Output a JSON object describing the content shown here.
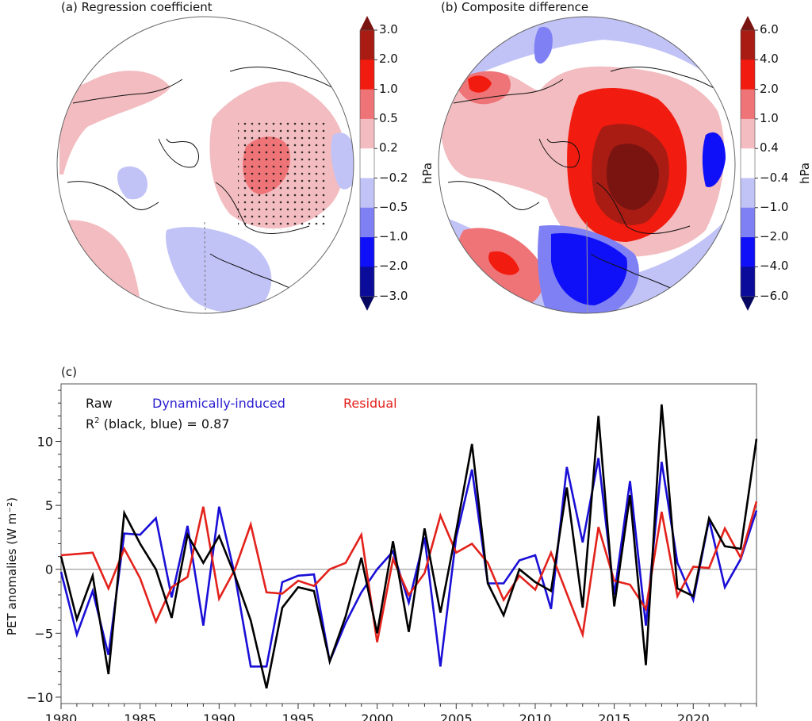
{
  "panels": {
    "a": {
      "title": "(a) Regression coefficient",
      "colorbar": {
        "unit": "hPa",
        "levels": [
          "3.0",
          "2.0",
          "1.0",
          "0.5",
          "0.2",
          "−0.2",
          "−0.5",
          "−1.0",
          "−2.0",
          "−3.0"
        ],
        "colors": [
          "#a81c14",
          "#f21b0f",
          "#ee7478",
          "#f2bcc0",
          "#ffffff",
          "#c1c3f7",
          "#7f80f4",
          "#1010f8",
          "#0c0c9a"
        ],
        "extend_top_color": "#7a1410",
        "extend_bottom_color": "#070760"
      }
    },
    "b": {
      "title": "(b) Composite difference",
      "colorbar": {
        "unit": "hPa",
        "levels": [
          "6.0",
          "4.0",
          "2.0",
          "1.0",
          "0.4",
          "−0.4",
          "−1.0",
          "−2.0",
          "−4.0",
          "−6.0"
        ],
        "colors": [
          "#a81c14",
          "#f21b0f",
          "#ee7478",
          "#f2bcc0",
          "#ffffff",
          "#c1c3f7",
          "#7f80f4",
          "#1010f8",
          "#0c0c9a"
        ],
        "extend_top_color": "#7a1410",
        "extend_bottom_color": "#070760"
      }
    },
    "c": {
      "title": "(c)",
      "legend": {
        "raw": "Raw",
        "dyn": "Dynamically-induced",
        "res": "Residual",
        "r2_prefix": "R",
        "r2_sup": "2",
        "r2_text": " (black, blue) = 0.87"
      }
    }
  },
  "chart_data": {
    "type": "line",
    "title": "(c)",
    "xlabel": "",
    "ylabel": "PET anomalies (W m⁻²)",
    "xlim": [
      1980,
      2024
    ],
    "ylim": [
      -10.5,
      14.5
    ],
    "xticks": [
      1980,
      1985,
      1990,
      1995,
      2000,
      2005,
      2010,
      2015,
      2020
    ],
    "yticks": [
      -10,
      -5,
      0,
      5,
      10
    ],
    "grid": false,
    "zero_line": true,
    "legend_placement": "top-left",
    "x": [
      1980,
      1981,
      1982,
      1983,
      1984,
      1985,
      1986,
      1987,
      1988,
      1989,
      1990,
      1991,
      1992,
      1993,
      1994,
      1995,
      1996,
      1997,
      1998,
      1999,
      2000,
      2001,
      2002,
      2003,
      2004,
      2005,
      2006,
      2007,
      2008,
      2009,
      2010,
      2011,
      2012,
      2013,
      2014,
      2015,
      2016,
      2017,
      2018,
      2019,
      2020,
      2021,
      2022,
      2023,
      2024
    ],
    "series": [
      {
        "name": "Raw",
        "color": "#000000",
        "values": [
          1.0,
          -3.9,
          -0.5,
          -8.2,
          4.4,
          2.0,
          0.0,
          -3.8,
          2.7,
          0.5,
          2.6,
          -0.5,
          -4.0,
          -9.3,
          -3.0,
          -1.4,
          -1.7,
          -7.2,
          -3.7,
          0.9,
          -5.0,
          2.2,
          -4.9,
          3.2,
          -3.4,
          3.0,
          9.8,
          -1.1,
          -3.6,
          0.0,
          -1.0,
          -1.7,
          6.4,
          -3.0,
          12.0,
          -2.9,
          5.8,
          -7.5,
          12.9,
          -1.5,
          -2.1,
          4.0,
          1.8,
          1.6,
          10.2
        ]
      },
      {
        "name": "Dynamically-induced",
        "color": "#1a0fd6",
        "values": [
          -0.2,
          -5.1,
          -1.7,
          -6.7,
          2.8,
          2.7,
          4.0,
          -2.2,
          3.4,
          -4.4,
          4.9,
          -0.5,
          -7.6,
          -7.6,
          -1.0,
          -0.5,
          -0.4,
          -7.2,
          -4.2,
          -1.8,
          0.0,
          1.4,
          -2.6,
          2.5,
          -7.6,
          2.5,
          7.8,
          -1.1,
          -1.1,
          0.7,
          1.1,
          -3.1,
          8.0,
          2.1,
          8.7,
          -2.0,
          6.9,
          -4.4,
          8.4,
          0.5,
          -2.4,
          3.9,
          -1.4,
          0.8,
          4.6
        ]
      },
      {
        "name": "Residual",
        "color": "#e3221c",
        "values": [
          1.1,
          1.2,
          1.3,
          -1.5,
          1.6,
          -0.7,
          -4.1,
          -1.4,
          -0.6,
          4.9,
          -2.3,
          0.0,
          3.5,
          -1.8,
          -1.9,
          -0.9,
          -1.3,
          0.0,
          0.5,
          2.7,
          -5.7,
          0.8,
          -2.0,
          -0.3,
          4.2,
          1.3,
          2.0,
          0.5,
          -2.4,
          -0.5,
          -1.6,
          1.3,
          -1.9,
          -5.1,
          3.3,
          -0.9,
          -1.2,
          -3.1,
          4.5,
          -2.1,
          0.2,
          0.1,
          3.2,
          0.9,
          5.3
        ]
      }
    ]
  }
}
